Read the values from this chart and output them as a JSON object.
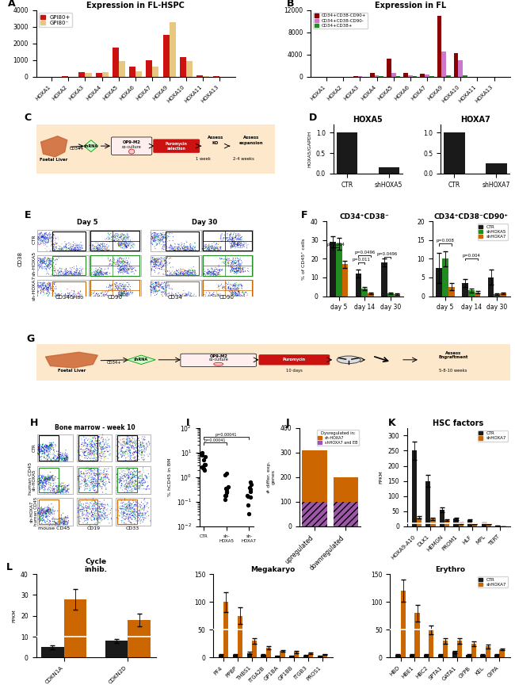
{
  "panel_A": {
    "title": "Expression in FL-HSPC",
    "categories": [
      "HOXA1",
      "HOXA2",
      "HOXA3",
      "HOXA4",
      "HOXA5",
      "HOXA6",
      "HOXA7",
      "HOXA9",
      "HOXA10",
      "HOXA11",
      "HOXA13"
    ],
    "GPI80pos": [
      5,
      10,
      280,
      200,
      1750,
      600,
      1000,
      2500,
      1200,
      100,
      10
    ],
    "GPI80neg": [
      5,
      5,
      230,
      250,
      950,
      300,
      600,
      3300,
      950,
      50,
      5
    ],
    "colors": [
      "#cc1111",
      "#e8c880"
    ],
    "ylim": [
      0,
      4000
    ],
    "yticks": [
      0,
      1000,
      2000,
      3000,
      4000
    ],
    "legend_labels": [
      "GPI80+",
      "GPI80⁻"
    ]
  },
  "panel_B": {
    "title": "Expression in FL",
    "categories": [
      "HOXA1",
      "HOXA2",
      "HOXA3",
      "HOXA4",
      "HOXA5",
      "HOXA6",
      "HOXA7",
      "HOXA9",
      "HOXA10",
      "HOXA11",
      "HOXA13"
    ],
    "CD34CD38negCD90pos": [
      5,
      5,
      80,
      700,
      3200,
      650,
      550,
      11000,
      4200,
      10,
      5
    ],
    "CD34CD38negCD90neg": [
      5,
      5,
      50,
      300,
      700,
      200,
      400,
      4600,
      3000,
      10,
      5
    ],
    "CD34CD38pos": [
      5,
      5,
      20,
      100,
      150,
      50,
      100,
      300,
      200,
      5,
      5
    ],
    "colors": [
      "#8b0000",
      "#cc77cc",
      "#228b22"
    ],
    "ylim": [
      0,
      12000
    ],
    "yticks": [
      0,
      4000,
      8000,
      12000
    ],
    "legend_labels": [
      "CD34+CD38-CD90+",
      "CD34+CD38-CD90-",
      "CD34+CD38+"
    ]
  },
  "panel_D_left": {
    "title": "HOXA5",
    "ylabel": "HOXA5/GAPDH",
    "categories": [
      "CTR",
      "shHOXA5"
    ],
    "values": [
      1.0,
      0.15
    ],
    "bar_color": "#1a1a1a",
    "ylim": [
      0,
      1.2
    ],
    "yticks": [
      0,
      0.5,
      1.0
    ]
  },
  "panel_D_right": {
    "title": "HOXA7",
    "ylabel": "HOXA7/GAPDH",
    "categories": [
      "CTR",
      "shHOXA7"
    ],
    "values": [
      1.0,
      0.25
    ],
    "bar_color": "#1a1a1a",
    "ylim": [
      0,
      1.2
    ],
    "yticks": [
      0,
      0.5,
      1.0
    ]
  },
  "panel_F_left": {
    "title": "CD34⁺CD38⁻",
    "ylabel": "% of CD45⁺ cells",
    "groups": [
      "day 5",
      "day 14",
      "day 30"
    ],
    "CTR": [
      29,
      12,
      18
    ],
    "shHOXA5": [
      28,
      4,
      1.5
    ],
    "shHOXA7": [
      17,
      1.5,
      1.0
    ],
    "CTR_err": [
      3,
      2,
      2
    ],
    "shHOXA5_err": [
      3,
      1,
      0.5
    ],
    "shHOXA7_err": [
      2,
      0.5,
      0.3
    ],
    "ylim": [
      0,
      40
    ],
    "yticks": [
      0,
      10,
      20,
      30,
      40
    ],
    "colors": [
      "#1a1a1a",
      "#228b22",
      "#cc6600"
    ]
  },
  "panel_F_right": {
    "title": "CD34⁺CD38⁻CD90⁺",
    "ylabel": "",
    "groups": [
      "day 5",
      "day 14",
      "day 30"
    ],
    "CTR": [
      7.5,
      3.5,
      5.0
    ],
    "shHOXA5": [
      10,
      1.5,
      0.5
    ],
    "shHOXA7": [
      2.5,
      1.0,
      0.8
    ],
    "CTR_err": [
      4,
      1,
      2
    ],
    "shHOXA5_err": [
      2,
      0.5,
      0.2
    ],
    "shHOXA7_err": [
      1,
      0.3,
      0.2
    ],
    "ylim": [
      0,
      20
    ],
    "yticks": [
      0,
      5,
      10,
      15,
      20
    ],
    "colors": [
      "#1a1a1a",
      "#228b22",
      "#cc6600"
    ]
  },
  "panel_J": {
    "categories": [
      "upregulated",
      "downregulated"
    ],
    "shHOXA7_only": [
      310,
      200
    ],
    "shHOXA7_and_EB": [
      100,
      100
    ],
    "colors_only": "#cc6600",
    "colors_both": "#9955bb",
    "ylim": [
      0,
      400
    ],
    "yticks": [
      0,
      100,
      200,
      300,
      400
    ],
    "ylabel": "# differ. exp.\ngenes"
  },
  "panel_K": {
    "title": "HSC factors",
    "ylabel": "FPKM",
    "categories": [
      "HOXA9-A10",
      "DLK1",
      "HEMGN",
      "PROM1",
      "HLF",
      "MPL",
      "TERT"
    ],
    "CTR": [
      250,
      150,
      55,
      25,
      20,
      12,
      3
    ],
    "shHOXA7": [
      30,
      25,
      20,
      10,
      8,
      8,
      1
    ],
    "CTR_err": [
      30,
      20,
      8,
      3,
      3,
      2,
      0.5
    ],
    "shHOXA7_err": [
      5,
      4,
      3,
      2,
      1,
      1,
      0.2
    ],
    "ylim": [
      0,
      325
    ],
    "yticks": [
      0,
      50,
      100,
      150,
      200,
      250,
      300
    ],
    "hline_y": 10,
    "colors": [
      "#1a1a1a",
      "#cc6600"
    ]
  },
  "panel_L_left": {
    "title": "Cycle\ninhib.",
    "ylabel": "FPKM",
    "categories": [
      "CDKN1A",
      "CDKN2D"
    ],
    "CTR": [
      5,
      8
    ],
    "shHOXA7": [
      28,
      18
    ],
    "CTR_err": [
      1,
      1
    ],
    "shHOXA7_err": [
      5,
      3
    ],
    "ylim": [
      0,
      40
    ],
    "yticks": [
      0,
      10,
      20,
      30,
      40
    ],
    "hline_y": 10,
    "colors": [
      "#1a1a1a",
      "#cc6600"
    ]
  },
  "panel_L_mid": {
    "title": "Megakaryo",
    "ylabel": "",
    "categories": [
      "PF4",
      "PPBP",
      "THBS1",
      "ITGA2B",
      "GP1BA",
      "GP1BB",
      "ITGB3",
      "PROS1"
    ],
    "CTR": [
      5,
      5,
      8,
      5,
      3,
      3,
      4,
      3
    ],
    "shHOXA7": [
      100,
      75,
      30,
      18,
      12,
      10,
      8,
      6
    ],
    "CTR_err": [
      1,
      1,
      2,
      1,
      0.5,
      0.5,
      1,
      0.5
    ],
    "shHOXA7_err": [
      18,
      15,
      5,
      3,
      2,
      2,
      1,
      1
    ],
    "ylim": [
      0,
      150
    ],
    "yticks": [
      0,
      50,
      100,
      150
    ],
    "hline_y": 50,
    "colors": [
      "#1a1a1a",
      "#cc6600"
    ]
  },
  "panel_L_right": {
    "title": "Erythro",
    "ylabel": "",
    "categories": [
      "HBD",
      "HBE1",
      "HBC2",
      "SPTA1",
      "GATA1",
      "GYPB",
      "KEL",
      "GYPA"
    ],
    "CTR": [
      5,
      5,
      5,
      5,
      10,
      5,
      5,
      5
    ],
    "shHOXA7": [
      120,
      80,
      50,
      30,
      30,
      25,
      20,
      15
    ],
    "CTR_err": [
      1,
      1,
      1,
      1,
      2,
      1,
      1,
      1
    ],
    "shHOXA7_err": [
      20,
      15,
      8,
      5,
      5,
      4,
      3,
      2
    ],
    "ylim": [
      0,
      150
    ],
    "yticks": [
      0,
      50,
      100,
      150
    ],
    "hline_y": 50,
    "colors": [
      "#1a1a1a",
      "#cc6600"
    ]
  },
  "background_color": "#ffffff",
  "fig_label_fs": 8,
  "tick_fs": 5.5,
  "title_fs": 7
}
